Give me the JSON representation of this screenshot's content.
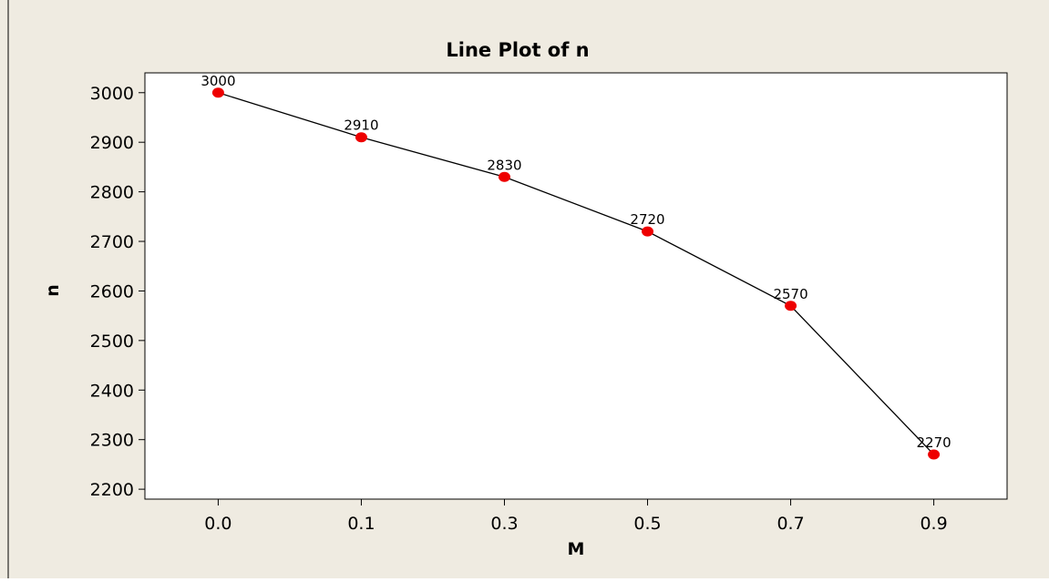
{
  "chart_data": {
    "type": "line",
    "title": "Line Plot of n",
    "xlabel": "M",
    "ylabel": "n",
    "categories": [
      "0.0",
      "0.1",
      "0.3",
      "0.5",
      "0.7",
      "0.9"
    ],
    "series": [
      {
        "values": [
          3000,
          2910,
          2830,
          2720,
          2570,
          2270
        ]
      }
    ],
    "data_labels": [
      "3000",
      "2910",
      "2830",
      "2720",
      "2570",
      "2270"
    ],
    "ylim": [
      2180,
      3040
    ],
    "yticks": [
      2200,
      2300,
      2400,
      2500,
      2600,
      2700,
      2800,
      2900,
      3000
    ],
    "grid": false,
    "legend": "none",
    "colors": {
      "figure_background": "#efebe1",
      "plot_background": "#ffffff",
      "line": "#000000",
      "marker": "#ee0000",
      "border": "#000000"
    }
  }
}
